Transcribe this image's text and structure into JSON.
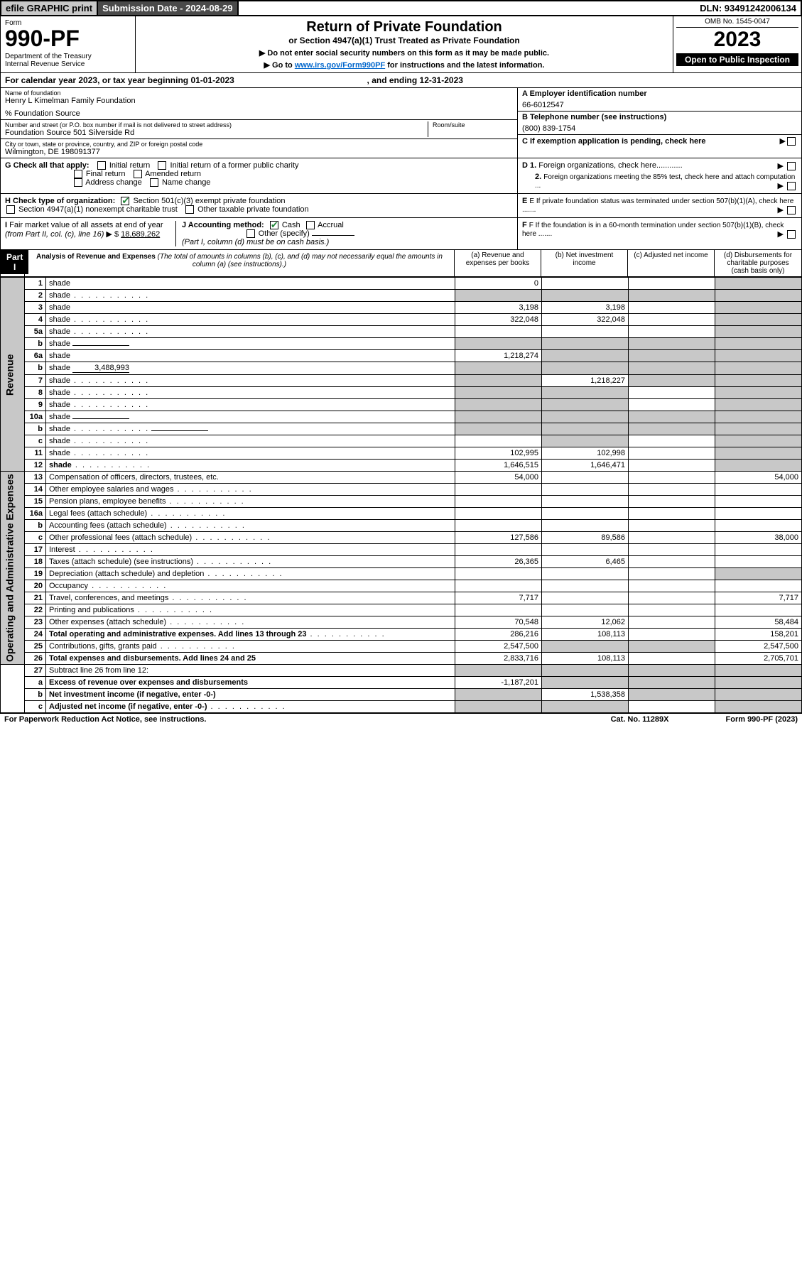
{
  "topbar": {
    "efile": "efile GRAPHIC print",
    "subdate_label": "Submission Date - 2024-08-29",
    "dln": "DLN: 93491242006134"
  },
  "header": {
    "form_word": "Form",
    "form_num": "990-PF",
    "dept": "Department of the Treasury\nInternal Revenue Service",
    "title": "Return of Private Foundation",
    "subtitle": "or Section 4947(a)(1) Trust Treated as Private Foundation",
    "instr1": "▶ Do not enter social security numbers on this form as it may be made public.",
    "instr2_pre": "▶ Go to ",
    "instr2_link": "www.irs.gov/Form990PF",
    "instr2_post": " for instructions and the latest information.",
    "omb": "OMB No. 1545-0047",
    "year": "2023",
    "open": "Open to Public Inspection"
  },
  "cal": {
    "text_pre": "For calendar year 2023, or tax year beginning ",
    "begin": "01-01-2023",
    "mid": ", and ending ",
    "end": "12-31-2023"
  },
  "org": {
    "name_lbl": "Name of foundation",
    "name": "Henry L Kimelman Family Foundation",
    "care": "% Foundation Source",
    "addr_lbl": "Number and street (or P.O. box number if mail is not delivered to street address)",
    "addr": "Foundation Source 501 Silverside Rd",
    "room_lbl": "Room/suite",
    "city_lbl": "City or town, state or province, country, and ZIP or foreign postal code",
    "city": "Wilmington, DE  198091377",
    "a_lbl": "A Employer identification number",
    "ein": "66-6012547",
    "b_lbl": "B Telephone number (see instructions)",
    "phone": "(800) 839-1754",
    "c_lbl": "C If exemption application is pending, check here"
  },
  "checks": {
    "g": "G Check all that apply:",
    "g_initial": "Initial return",
    "g_initial_pub": "Initial return of a former public charity",
    "g_final": "Final return",
    "g_amended": "Amended return",
    "g_addr": "Address change",
    "g_name": "Name change",
    "h": "H Check type of organization:",
    "h_501": "Section 501(c)(3) exempt private foundation",
    "h_4947": "Section 4947(a)(1) nonexempt charitable trust",
    "h_other": "Other taxable private foundation",
    "i": "I Fair market value of all assets at end of year (from Part II, col. (c), line 16) ▶ $",
    "i_val": "18,689,262",
    "j": "J Accounting method:",
    "j_cash": "Cash",
    "j_accrual": "Accrual",
    "j_other": "Other (specify)",
    "j_note": "(Part I, column (d) must be on cash basis.)",
    "d1": "D 1. Foreign organizations, check here............",
    "d2": "2. Foreign organizations meeting the 85% test, check here and attach computation ...",
    "e": "E  If private foundation status was terminated under section 507(b)(1)(A), check here .......",
    "f": "F  If the foundation is in a 60-month termination under section 507(b)(1)(B), check here .......",
    "arrow": "▶"
  },
  "part1": {
    "label": "Part I",
    "title": "Analysis of Revenue and Expenses",
    "title_note": " (The total of amounts in columns (b), (c), and (d) may not necessarily equal the amounts in column (a) (see instructions).)",
    "col_a": "(a) Revenue and expenses per books",
    "col_b": "(b) Net investment income",
    "col_c": "(c) Adjusted net income",
    "col_d": "(d)  Disbursements for charitable purposes (cash basis only)"
  },
  "sections": {
    "revenue": "Revenue",
    "expenses": "Operating and Administrative Expenses"
  },
  "rows": [
    {
      "sec": "rev",
      "n": "1",
      "d": "shade",
      "a": "0",
      "b": "",
      "c": ""
    },
    {
      "sec": "rev",
      "n": "2",
      "d": "shade",
      "dots": 1,
      "a": "shade",
      "b": "shade",
      "c": "shade"
    },
    {
      "sec": "rev",
      "n": "3",
      "d": "shade",
      "a": "3,198",
      "b": "3,198",
      "c": ""
    },
    {
      "sec": "rev",
      "n": "4",
      "d": "shade",
      "dots": 1,
      "a": "322,048",
      "b": "322,048",
      "c": ""
    },
    {
      "sec": "rev",
      "n": "5a",
      "d": "shade",
      "dots": 1,
      "a": "",
      "b": "",
      "c": ""
    },
    {
      "sec": "rev",
      "n": "b",
      "d": "shade",
      "inline": "",
      "a": "shade",
      "b": "shade",
      "c": "shade"
    },
    {
      "sec": "rev",
      "n": "6a",
      "d": "shade",
      "a": "1,218,274",
      "b": "shade",
      "c": "shade"
    },
    {
      "sec": "rev",
      "n": "b",
      "d": "shade",
      "inline": "3,488,993",
      "a": "shade",
      "b": "shade",
      "c": "shade"
    },
    {
      "sec": "rev",
      "n": "7",
      "d": "shade",
      "dots": 1,
      "a": "shade",
      "b": "1,218,227",
      "c": "shade"
    },
    {
      "sec": "rev",
      "n": "8",
      "d": "shade",
      "dots": 1,
      "a": "shade",
      "b": "shade",
      "c": ""
    },
    {
      "sec": "rev",
      "n": "9",
      "d": "shade",
      "dots": 1,
      "a": "shade",
      "b": "shade",
      "c": ""
    },
    {
      "sec": "rev",
      "n": "10a",
      "d": "shade",
      "inline": "",
      "a": "shade",
      "b": "shade",
      "c": "shade"
    },
    {
      "sec": "rev",
      "n": "b",
      "d": "shade",
      "dots": 1,
      "inline": "",
      "a": "shade",
      "b": "shade",
      "c": "shade"
    },
    {
      "sec": "rev",
      "n": "c",
      "d": "shade",
      "dots": 1,
      "a": "",
      "b": "shade",
      "c": ""
    },
    {
      "sec": "rev",
      "n": "11",
      "d": "shade",
      "dots": 1,
      "a": "102,995",
      "b": "102,998",
      "c": ""
    },
    {
      "sec": "rev",
      "n": "12",
      "d": "shade",
      "dots": 1,
      "b2": 1,
      "a": "1,646,515",
      "b": "1,646,471",
      "c": ""
    },
    {
      "sec": "exp",
      "n": "13",
      "d": "Compensation of officers, directors, trustees, etc.",
      "a": "54,000",
      "b": "",
      "c": "",
      "dd": "54,000"
    },
    {
      "sec": "exp",
      "n": "14",
      "d": "Other employee salaries and wages",
      "dots": 1,
      "a": "",
      "b": "",
      "c": "",
      "dd": ""
    },
    {
      "sec": "exp",
      "n": "15",
      "d": "Pension plans, employee benefits",
      "dots": 1,
      "a": "",
      "b": "",
      "c": "",
      "dd": ""
    },
    {
      "sec": "exp",
      "n": "16a",
      "d": "Legal fees (attach schedule)",
      "dots": 1,
      "a": "",
      "b": "",
      "c": "",
      "dd": ""
    },
    {
      "sec": "exp",
      "n": "b",
      "d": "Accounting fees (attach schedule)",
      "dots": 1,
      "a": "",
      "b": "",
      "c": "",
      "dd": ""
    },
    {
      "sec": "exp",
      "n": "c",
      "d": "Other professional fees (attach schedule)",
      "dots": 1,
      "a": "127,586",
      "b": "89,586",
      "c": "",
      "dd": "38,000"
    },
    {
      "sec": "exp",
      "n": "17",
      "d": "Interest",
      "dots": 1,
      "a": "",
      "b": "",
      "c": "",
      "dd": ""
    },
    {
      "sec": "exp",
      "n": "18",
      "d": "Taxes (attach schedule) (see instructions)",
      "dots": 1,
      "a": "26,365",
      "b": "6,465",
      "c": "",
      "dd": ""
    },
    {
      "sec": "exp",
      "n": "19",
      "d": "Depreciation (attach schedule) and depletion",
      "dots": 1,
      "a": "",
      "b": "",
      "c": "",
      "dd": "shade"
    },
    {
      "sec": "exp",
      "n": "20",
      "d": "Occupancy",
      "dots": 1,
      "a": "",
      "b": "",
      "c": "",
      "dd": ""
    },
    {
      "sec": "exp",
      "n": "21",
      "d": "Travel, conferences, and meetings",
      "dots": 1,
      "a": "7,717",
      "b": "",
      "c": "",
      "dd": "7,717"
    },
    {
      "sec": "exp",
      "n": "22",
      "d": "Printing and publications",
      "dots": 1,
      "a": "",
      "b": "",
      "c": "",
      "dd": ""
    },
    {
      "sec": "exp",
      "n": "23",
      "d": "Other expenses (attach schedule)",
      "dots": 1,
      "a": "70,548",
      "b": "12,062",
      "c": "",
      "dd": "58,484"
    },
    {
      "sec": "exp",
      "n": "24",
      "d": "Total operating and administrative expenses. Add lines 13 through 23",
      "dots": 1,
      "b2": 1,
      "a": "286,216",
      "b": "108,113",
      "c": "",
      "dd": "158,201"
    },
    {
      "sec": "exp",
      "n": "25",
      "d": "Contributions, gifts, grants paid",
      "dots": 1,
      "a": "2,547,500",
      "b": "shade",
      "c": "shade",
      "dd": "2,547,500"
    },
    {
      "sec": "exp",
      "n": "26",
      "d": "Total expenses and disbursements. Add lines 24 and 25",
      "b2": 1,
      "a": "2,833,716",
      "b": "108,113",
      "c": "",
      "dd": "2,705,701"
    },
    {
      "sec": "bot",
      "n": "27",
      "d": "Subtract line 26 from line 12:",
      "a": "shade",
      "b": "shade",
      "c": "shade",
      "dd": "shade"
    },
    {
      "sec": "bot",
      "n": "a",
      "d": "Excess of revenue over expenses and disbursements",
      "b2": 1,
      "a": "-1,187,201",
      "b": "shade",
      "c": "shade",
      "dd": "shade"
    },
    {
      "sec": "bot",
      "n": "b",
      "d": "Net investment income (if negative, enter -0-)",
      "b2": 1,
      "a": "shade",
      "b": "1,538,358",
      "c": "shade",
      "dd": "shade"
    },
    {
      "sec": "bot",
      "n": "c",
      "d": "Adjusted net income (if negative, enter -0-)",
      "dots": 1,
      "b2": 1,
      "a": "shade",
      "b": "shade",
      "c": "",
      "dd": "shade"
    }
  ],
  "footer": {
    "pra": "For Paperwork Reduction Act Notice, see instructions.",
    "cat": "Cat. No. 11289X",
    "form": "Form 990-PF (2023)"
  }
}
